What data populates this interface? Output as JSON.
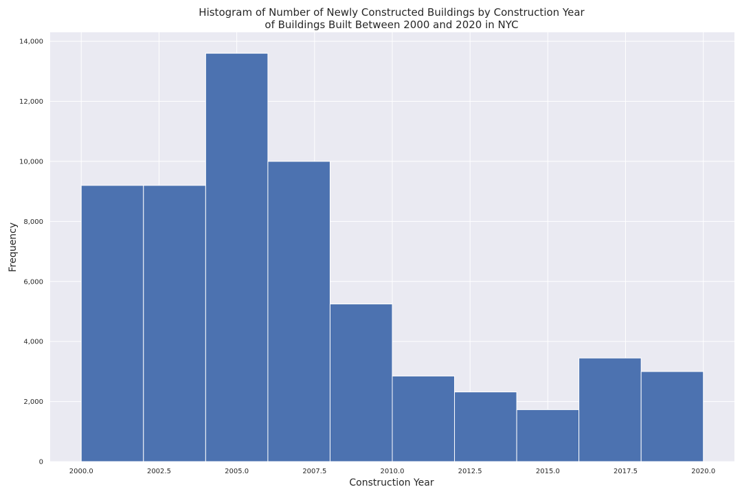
{
  "chart_data": {
    "type": "bar",
    "title_lines": [
      "Histogram of Number of Newly Constructed Buildings by Construction Year",
      "of Buildings Built Between 2000 and 2020 in NYC"
    ],
    "xlabel": "Construction Year",
    "ylabel": "Frequency",
    "bin_edges": [
      2000,
      2002,
      2004,
      2006,
      2008,
      2010,
      2012,
      2014,
      2016,
      2018,
      2020
    ],
    "values": [
      9200,
      9200,
      13600,
      10000,
      5250,
      2850,
      2320,
      1730,
      3450,
      3000
    ],
    "xlim": [
      1999,
      2021
    ],
    "ylim": [
      0,
      14300
    ],
    "xticks": [
      2000.0,
      2002.5,
      2005.0,
      2007.5,
      2010.0,
      2012.5,
      2015.0,
      2017.5,
      2020.0
    ],
    "xtick_labels": [
      "2000.0",
      "2002.5",
      "2005.0",
      "2007.5",
      "2010.0",
      "2012.5",
      "2015.0",
      "2017.5",
      "2020.0"
    ],
    "yticks": [
      0,
      2000,
      4000,
      6000,
      8000,
      10000,
      12000,
      14000
    ],
    "ytick_labels": [
      "0",
      "2,000",
      "4,000",
      "6,000",
      "8,000",
      "10,000",
      "12,000",
      "14,000"
    ],
    "grid": true,
    "colors": {
      "bar": "#4c72b0",
      "plot_background": "#eaeaf2",
      "grid": "#ffffff",
      "text": "#262626"
    }
  }
}
